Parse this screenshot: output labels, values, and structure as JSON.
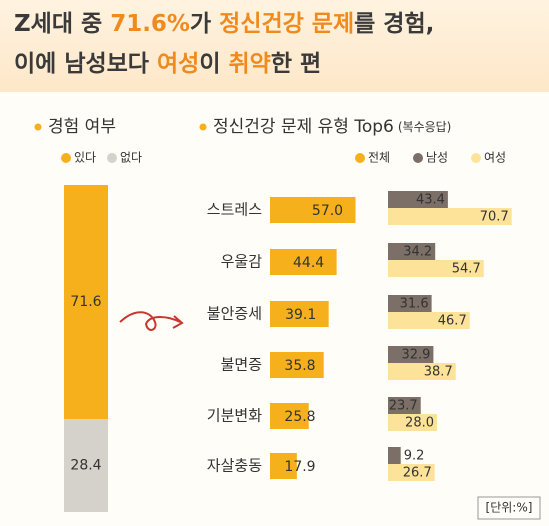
{
  "title": {
    "line1": [
      "Z세대 중 ",
      "71.6%",
      "가 ",
      "정신건강 문제",
      "를 경험,"
    ],
    "line2": [
      "이에 남성보다 ",
      "여성",
      "이 ",
      "취약",
      "한 편"
    ]
  },
  "chart_data": [
    {
      "type": "stacked-bar",
      "title": "경험 여부",
      "categories": [
        null
      ],
      "series": [
        {
          "name": "있다",
          "color": "#f6b01c",
          "values": [
            71.6
          ]
        },
        {
          "name": "없다",
          "color": "#d5d1cb",
          "values": [
            28.4
          ]
        }
      ]
    },
    {
      "type": "grouped-hbar",
      "title": "정신건강 문제 유형 Top6",
      "subtitle": "(복수응답)",
      "categories": [
        "스트레스",
        "우울감",
        "불안증세",
        "불면증",
        "기분변화",
        "자살충동"
      ],
      "series": [
        {
          "name": "전체",
          "color": "#f6b01c",
          "values": [
            57.0,
            44.4,
            39.1,
            35.8,
            25.8,
            17.9
          ],
          "value_labels": [
            "57.0",
            "44.4",
            "39.1",
            "35.8",
            "25.8",
            "17.9"
          ]
        },
        {
          "name": "남성",
          "color": "#7b6f68",
          "values": [
            43.4,
            34.2,
            31.6,
            32.9,
            23.7,
            9.2
          ],
          "value_labels": [
            "43.4",
            "34.2",
            "31.6",
            "32.9",
            "23.7",
            "9.2"
          ]
        },
        {
          "name": "여성",
          "color": "#fde39a",
          "values": [
            70.7,
            54.7,
            46.7,
            38.7,
            28.0,
            26.7
          ],
          "value_labels": [
            "70.7",
            "54.7",
            "46.7",
            "38.7",
            "28.0",
            "26.7"
          ]
        }
      ],
      "unit": "[단위:%]"
    }
  ]
}
